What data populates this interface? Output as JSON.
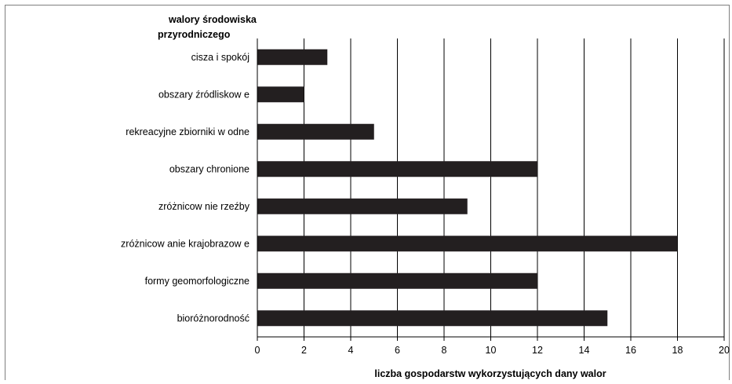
{
  "chart_data": {
    "type": "bar",
    "orientation": "horizontal",
    "title_lines": [
      "walory środowiska",
      "przyrodniczego"
    ],
    "xlabel": "liczba gospodarstw wykorzystujących dany walor",
    "xlim": [
      0,
      20
    ],
    "xticks": [
      0,
      2,
      4,
      6,
      8,
      10,
      12,
      14,
      16,
      18,
      20
    ],
    "grid": "vertical",
    "bar_color": "#231f20",
    "categories": [
      "cisza i spokój",
      "obszary źródliskow e",
      "rekreacyjne zbiorniki w odne",
      "obszary chronione",
      "zróżnicow nie rzeźby",
      "zróżnicow anie krajobrazow e",
      "formy geomorfologiczne",
      "bioróżnorodność"
    ],
    "values": [
      3,
      2,
      5,
      12,
      9,
      18,
      12,
      15
    ]
  }
}
